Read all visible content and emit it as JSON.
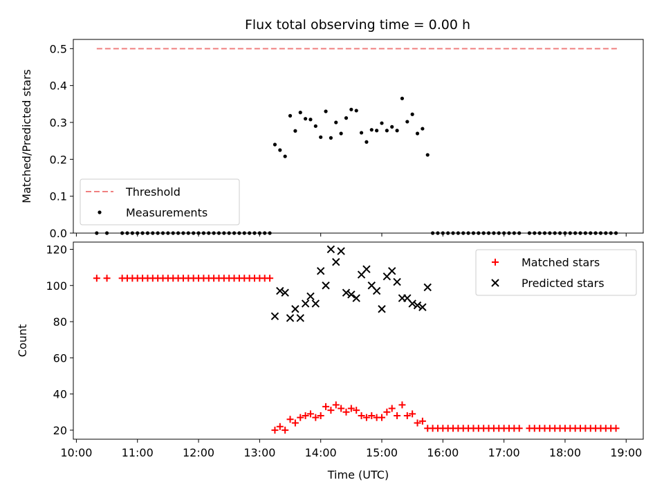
{
  "chart_data": [
    {
      "type": "scatter",
      "title": "Flux total observing time = 0.00 h",
      "xlabel": "",
      "ylabel": "Matched/Predicted stars",
      "ylim": [
        0,
        0.525
      ],
      "yticks": [
        0.0,
        0.1,
        0.2,
        0.3,
        0.4,
        0.5
      ],
      "ytick_labels": [
        "0.0",
        "0.1",
        "0.2",
        "0.3",
        "0.4",
        "0.5"
      ],
      "xlim_hours": [
        9.95,
        19.28
      ],
      "legend_position": "lower-left",
      "series": [
        {
          "name": "Threshold",
          "kind": "dashed-line",
          "color": "#f08080",
          "x": [
            "10:20",
            "18:51"
          ],
          "values": [
            0.5,
            0.5
          ]
        },
        {
          "name": "Measurements",
          "kind": "dot",
          "color": "#000000",
          "x": [
            "10:20",
            "10:30",
            "10:45",
            "10:50",
            "10:55",
            "11:00",
            "11:05",
            "11:10",
            "11:15",
            "11:20",
            "11:25",
            "11:30",
            "11:35",
            "11:40",
            "11:45",
            "11:50",
            "11:55",
            "12:00",
            "12:05",
            "12:10",
            "12:15",
            "12:20",
            "12:25",
            "12:30",
            "12:35",
            "12:40",
            "12:45",
            "12:50",
            "12:55",
            "13:00",
            "13:05",
            "13:10",
            "13:15",
            "13:20",
            "13:25",
            "13:30",
            "13:35",
            "13:40",
            "13:45",
            "13:50",
            "13:55",
            "14:00",
            "14:05",
            "14:10",
            "14:15",
            "14:20",
            "14:25",
            "14:30",
            "14:35",
            "14:40",
            "14:45",
            "14:50",
            "14:55",
            "15:00",
            "15:05",
            "15:10",
            "15:15",
            "15:20",
            "15:25",
            "15:30",
            "15:35",
            "15:40",
            "15:45",
            "15:50",
            "15:55",
            "16:00",
            "16:05",
            "16:10",
            "16:15",
            "16:20",
            "16:25",
            "16:30",
            "16:35",
            "16:40",
            "16:45",
            "16:50",
            "16:55",
            "17:00",
            "17:05",
            "17:10",
            "17:15",
            "17:25",
            "17:30",
            "17:35",
            "17:40",
            "17:45",
            "17:50",
            "17:55",
            "18:00",
            "18:05",
            "18:10",
            "18:15",
            "18:20",
            "18:25",
            "18:30",
            "18:35",
            "18:40",
            "18:45",
            "18:50"
          ],
          "values": [
            0,
            0,
            0,
            0,
            0,
            0,
            0,
            0,
            0,
            0,
            0,
            0,
            0,
            0,
            0,
            0,
            0,
            0,
            0,
            0,
            0,
            0,
            0,
            0,
            0,
            0,
            0,
            0,
            0,
            0,
            0,
            0,
            0.24,
            0.225,
            0.208,
            0.318,
            0.277,
            0.327,
            0.31,
            0.308,
            0.29,
            0.26,
            0.33,
            0.258,
            0.3,
            0.27,
            0.312,
            0.335,
            0.332,
            0.272,
            0.247,
            0.28,
            0.278,
            0.298,
            0.278,
            0.288,
            0.278,
            0.365,
            0.302,
            0.322,
            0.27,
            0.283,
            0.212,
            0,
            0,
            0,
            0,
            0,
            0,
            0,
            0,
            0,
            0,
            0,
            0,
            0,
            0,
            0,
            0,
            0,
            0,
            0,
            0,
            0,
            0,
            0,
            0,
            0,
            0,
            0,
            0,
            0,
            0,
            0,
            0,
            0,
            0,
            0,
            0
          ]
        }
      ]
    },
    {
      "type": "scatter",
      "title": "",
      "xlabel": "Time (UTC)",
      "ylabel": "Count",
      "ylim": [
        15,
        124
      ],
      "yticks": [
        20,
        40,
        60,
        80,
        100,
        120
      ],
      "ytick_labels": [
        "20",
        "40",
        "60",
        "80",
        "100",
        "120"
      ],
      "xlim_hours": [
        9.95,
        19.28
      ],
      "xticks": [
        "10:00",
        "11:00",
        "12:00",
        "13:00",
        "14:00",
        "15:00",
        "16:00",
        "17:00",
        "18:00",
        "19:00"
      ],
      "legend_position": "upper-right",
      "series": [
        {
          "name": "Matched stars",
          "kind": "plus",
          "color": "#ff0000",
          "x": [
            "10:20",
            "10:30",
            "10:45",
            "10:50",
            "10:55",
            "11:00",
            "11:05",
            "11:10",
            "11:15",
            "11:20",
            "11:25",
            "11:30",
            "11:35",
            "11:40",
            "11:45",
            "11:50",
            "11:55",
            "12:00",
            "12:05",
            "12:10",
            "12:15",
            "12:20",
            "12:25",
            "12:30",
            "12:35",
            "12:40",
            "12:45",
            "12:50",
            "12:55",
            "13:00",
            "13:05",
            "13:10",
            "13:15",
            "13:20",
            "13:25",
            "13:30",
            "13:35",
            "13:40",
            "13:45",
            "13:50",
            "13:55",
            "14:00",
            "14:05",
            "14:10",
            "14:15",
            "14:20",
            "14:25",
            "14:30",
            "14:35",
            "14:40",
            "14:45",
            "14:50",
            "14:55",
            "15:00",
            "15:05",
            "15:10",
            "15:15",
            "15:20",
            "15:25",
            "15:30",
            "15:35",
            "15:40",
            "15:45",
            "15:50",
            "15:55",
            "16:00",
            "16:05",
            "16:10",
            "16:15",
            "16:20",
            "16:25",
            "16:30",
            "16:35",
            "16:40",
            "16:45",
            "16:50",
            "16:55",
            "17:00",
            "17:05",
            "17:10",
            "17:15",
            "17:25",
            "17:30",
            "17:35",
            "17:40",
            "17:45",
            "17:50",
            "17:55",
            "18:00",
            "18:05",
            "18:10",
            "18:15",
            "18:20",
            "18:25",
            "18:30",
            "18:35",
            "18:40",
            "18:45",
            "18:50"
          ],
          "values": [
            104,
            104,
            104,
            104,
            104,
            104,
            104,
            104,
            104,
            104,
            104,
            104,
            104,
            104,
            104,
            104,
            104,
            104,
            104,
            104,
            104,
            104,
            104,
            104,
            104,
            104,
            104,
            104,
            104,
            104,
            104,
            104,
            20,
            22,
            20,
            26,
            24,
            27,
            28,
            29,
            27,
            28,
            33,
            31,
            34,
            32,
            30,
            32,
            31,
            28,
            27,
            28,
            27,
            27,
            30,
            32,
            28,
            34,
            28,
            29,
            24,
            25,
            21,
            21,
            21,
            21,
            21,
            21,
            21,
            21,
            21,
            21,
            21,
            21,
            21,
            21,
            21,
            21,
            21,
            21,
            21,
            21,
            21,
            21,
            21,
            21,
            21,
            21,
            21,
            21,
            21,
            21,
            21,
            21,
            21,
            21,
            21,
            21,
            21
          ]
        },
        {
          "name": "Predicted stars",
          "kind": "x",
          "color": "#000000",
          "x": [
            "13:15",
            "13:20",
            "13:25",
            "13:30",
            "13:35",
            "13:40",
            "13:45",
            "13:50",
            "13:55",
            "14:00",
            "14:05",
            "14:10",
            "14:15",
            "14:20",
            "14:25",
            "14:30",
            "14:35",
            "14:40",
            "14:45",
            "14:50",
            "14:55",
            "15:00",
            "15:05",
            "15:10",
            "15:15",
            "15:20",
            "15:25",
            "15:30",
            "15:35",
            "15:40",
            "15:45"
          ],
          "values": [
            83,
            97,
            96,
            82,
            87,
            82,
            90,
            94,
            90,
            108,
            100,
            120,
            113,
            119,
            96,
            95,
            93,
            106,
            109,
            100,
            97,
            87,
            105,
            108,
            102,
            93,
            93,
            90,
            89,
            88,
            99
          ]
        }
      ]
    }
  ]
}
